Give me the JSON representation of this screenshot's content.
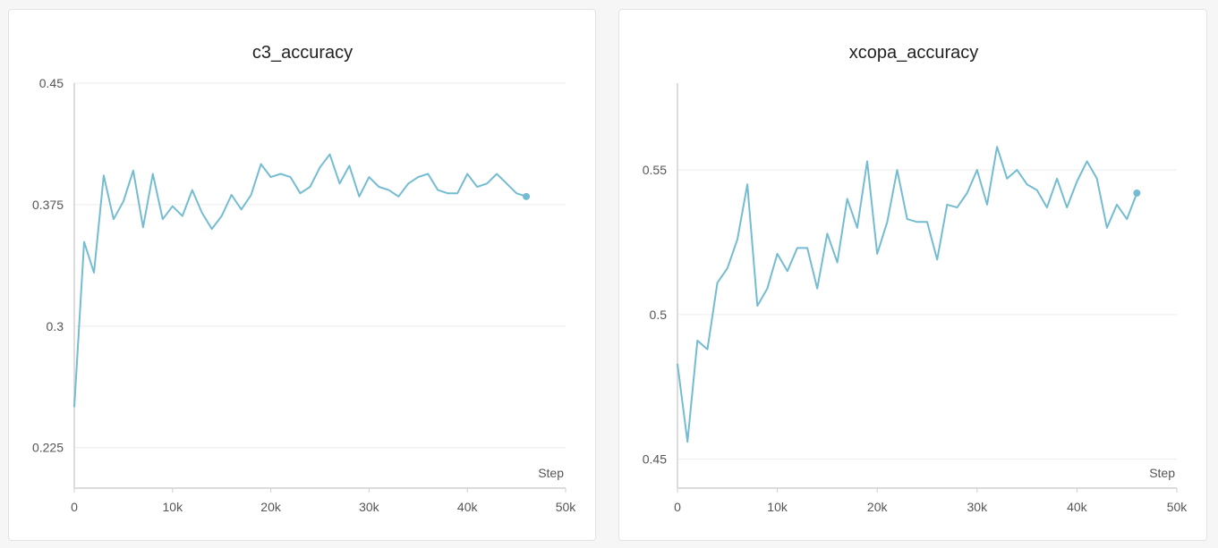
{
  "chart_data": [
    {
      "type": "line",
      "title": "c3_accuracy",
      "xlabel": "Step",
      "ylabel": "",
      "xlim": [
        0,
        50000
      ],
      "ylim": [
        0.2,
        0.45
      ],
      "xticks": [
        0,
        10000,
        20000,
        30000,
        40000,
        50000
      ],
      "xtick_labels": [
        "0",
        "10k",
        "20k",
        "30k",
        "40k",
        "50k"
      ],
      "yticks": [
        0.225,
        0.3,
        0.375,
        0.45
      ],
      "ytick_labels": [
        "0.225",
        "0.3",
        "0.375",
        "0.45"
      ],
      "grid": true,
      "color": "#74bcd1",
      "x": [
        0,
        1000,
        2000,
        3000,
        4000,
        5000,
        6000,
        7000,
        8000,
        9000,
        10000,
        11000,
        12000,
        13000,
        14000,
        15000,
        16000,
        17000,
        18000,
        19000,
        20000,
        21000,
        22000,
        23000,
        24000,
        25000,
        26000,
        27000,
        28000,
        29000,
        30000,
        31000,
        32000,
        33000,
        34000,
        35000,
        36000,
        37000,
        38000,
        39000,
        40000,
        41000,
        42000,
        43000,
        44000,
        45000,
        46000
      ],
      "values": [
        0.25,
        0.352,
        0.333,
        0.393,
        0.366,
        0.377,
        0.396,
        0.361,
        0.394,
        0.366,
        0.374,
        0.368,
        0.384,
        0.37,
        0.36,
        0.368,
        0.381,
        0.372,
        0.381,
        0.4,
        0.392,
        0.394,
        0.392,
        0.382,
        0.386,
        0.398,
        0.406,
        0.388,
        0.399,
        0.38,
        0.392,
        0.386,
        0.384,
        0.38,
        0.388,
        0.392,
        0.394,
        0.384,
        0.382,
        0.382,
        0.394,
        0.386,
        0.388,
        0.394,
        0.388,
        0.382,
        0.38
      ]
    },
    {
      "type": "line",
      "title": "xcopa_accuracy",
      "xlabel": "Step",
      "ylabel": "",
      "xlim": [
        0,
        50000
      ],
      "ylim": [
        0.44,
        0.58
      ],
      "xticks": [
        0,
        10000,
        20000,
        30000,
        40000,
        50000
      ],
      "xtick_labels": [
        "0",
        "10k",
        "20k",
        "30k",
        "40k",
        "50k"
      ],
      "yticks": [
        0.45,
        0.5,
        0.55
      ],
      "ytick_labels": [
        "0.45",
        "0.5",
        "0.55"
      ],
      "grid": true,
      "color": "#74bcd1",
      "x": [
        0,
        1000,
        2000,
        3000,
        4000,
        5000,
        6000,
        7000,
        8000,
        9000,
        10000,
        11000,
        12000,
        13000,
        14000,
        15000,
        16000,
        17000,
        18000,
        19000,
        20000,
        21000,
        22000,
        23000,
        24000,
        25000,
        26000,
        27000,
        28000,
        29000,
        30000,
        31000,
        32000,
        33000,
        34000,
        35000,
        36000,
        37000,
        38000,
        39000,
        40000,
        41000,
        42000,
        43000,
        44000,
        45000,
        46000
      ],
      "values": [
        0.483,
        0.456,
        0.491,
        0.488,
        0.511,
        0.516,
        0.526,
        0.545,
        0.503,
        0.509,
        0.521,
        0.515,
        0.523,
        0.523,
        0.509,
        0.528,
        0.518,
        0.54,
        0.53,
        0.553,
        0.521,
        0.532,
        0.55,
        0.533,
        0.532,
        0.532,
        0.519,
        0.538,
        0.537,
        0.542,
        0.55,
        0.538,
        0.558,
        0.547,
        0.55,
        0.545,
        0.543,
        0.537,
        0.547,
        0.537,
        0.546,
        0.553,
        0.547,
        0.53,
        0.538,
        0.533,
        0.542
      ]
    }
  ]
}
